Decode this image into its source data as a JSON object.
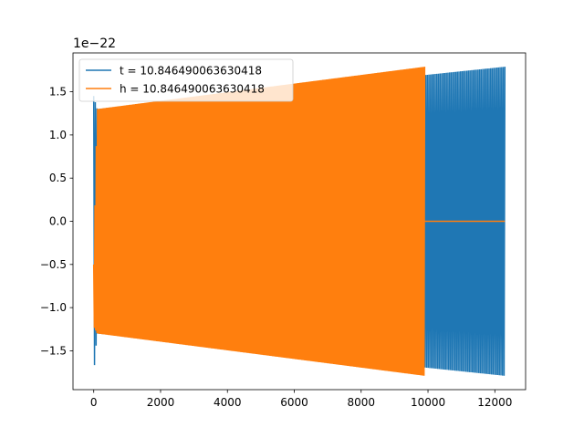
{
  "chart_data": {
    "type": "line",
    "title": "",
    "xlabel": "",
    "ylabel": "",
    "y_scale_label": "1e−22",
    "xlim": [
      -620,
      12920
    ],
    "ylim": [
      -1.95,
      1.95
    ],
    "x_ticks": [
      0,
      2000,
      4000,
      6000,
      8000,
      10000,
      12000
    ],
    "x_tick_labels": [
      "0",
      "2000",
      "4000",
      "6000",
      "8000",
      "10000",
      "12000"
    ],
    "y_ticks": [
      1.5,
      1.0,
      0.5,
      0.0,
      -0.5,
      -1.0,
      -1.5
    ],
    "y_tick_labels": [
      "1.5",
      "1.0",
      "0.5",
      "0.0",
      "−0.5",
      "−1.0",
      "−1.5"
    ],
    "grid": false,
    "legend_position": "upper left",
    "series": [
      {
        "name": "t = 10.846490063630418",
        "color": "#1f77b4",
        "style": "dense oscillation",
        "x_start": 0,
        "x_end": 12300,
        "envelope_x": [
          0,
          100,
          12300
        ],
        "envelope_upper": [
          1.45,
          1.3,
          1.79
        ],
        "envelope_lower": [
          -1.78,
          -1.3,
          -1.79
        ]
      },
      {
        "name": "h = 10.846490063630418",
        "color": "#ff7f0e",
        "style": "dense oscillation",
        "x_start": 0,
        "x_end": 9900,
        "tail_value": 0.0,
        "tail_x_end": 12300,
        "envelope_x": [
          0,
          100,
          9900
        ],
        "envelope_upper": [
          -0.5,
          1.3,
          1.79
        ],
        "envelope_lower": [
          -1.22,
          -1.3,
          -1.79
        ]
      }
    ]
  }
}
